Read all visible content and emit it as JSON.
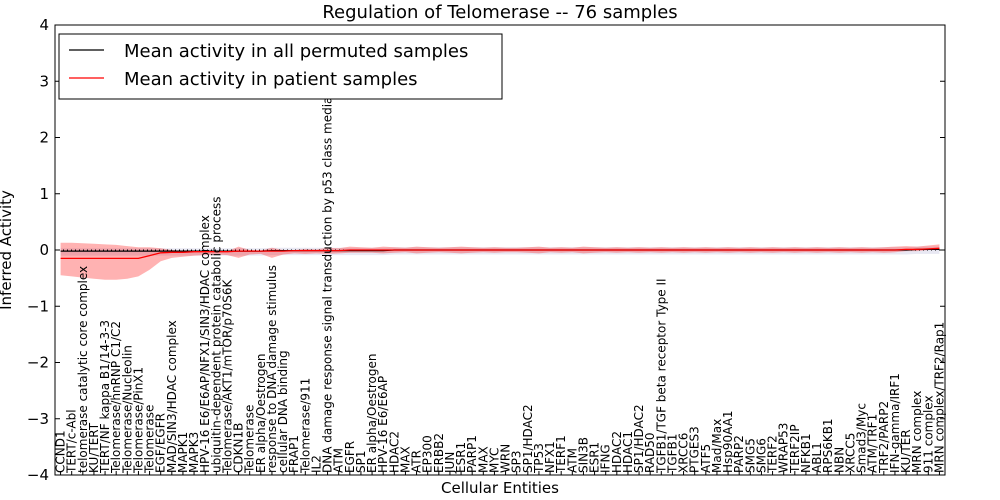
{
  "chart_data": {
    "type": "line",
    "title": "Regulation of Telomerase -- 76 samples",
    "xlabel": "Cellular Entities",
    "ylabel": "Inferred Activity",
    "ylim": [
      -4,
      4
    ],
    "yticks": [
      -4,
      -3,
      -2,
      -1,
      0,
      1,
      2,
      3,
      4
    ],
    "ytick_labels": [
      "−4",
      "−3",
      "−2",
      "−1",
      "0",
      "1",
      "2",
      "3",
      "4"
    ],
    "legend": {
      "location": "upper-left",
      "entries": [
        {
          "label": "Mean activity in all permuted samples",
          "color": "#000000"
        },
        {
          "label": "Mean activity in patient samples",
          "color": "#ff0000"
        }
      ]
    },
    "categories": [
      "CCND1",
      "TERT/c-Abl",
      "telomerase catalytic core complex",
      "KU/TERT",
      "TERT/NF kappa B1/14-3-3",
      "Telomerase/hnRNP C1/C2",
      "Telomerase/Nucleolin",
      "Telomerase/PinX1",
      "Telomerase",
      "EGF/EGFR",
      "MAD/SIN3/HDAC complex",
      "MAPK1",
      "MAPK3",
      "HPV-16 E6/E6AP/NFX1/SIN3/HDAC complex",
      "ubiquitin-dependent protein catabolic process",
      "Telomerase/AKT1/mTOR/p70S6K",
      "CDKN1B",
      "Telomerase",
      "ER alpha/Oestrogen",
      "response to DNA damage stimulus",
      "cellular DNA binding",
      "FRAP1",
      "Telomerase/911",
      "IL2",
      "DNA damage response signal transduction by p53 class mediator",
      "ATM",
      "EGFR",
      "SP1",
      "ER alpha/Oestrogen",
      "HPV-16 E6/E6AP",
      "HDAC2",
      "MAX",
      "ATR",
      "EP300",
      "ERBB2",
      "JUN",
      "ESR1",
      "PARP1",
      "MAX",
      "MYC",
      "WRN",
      "SP3",
      "SP1/HDAC2",
      "TP53",
      "NFX1",
      "TERF1",
      "ATM",
      "SIN3B",
      "ESR1",
      "IFNG",
      "HDAC2",
      "HDAC1",
      "SP1/HDAC2",
      "RAD50",
      "TGFB1/TGF beta receptor Type II",
      "TGFB1",
      "XRCC6",
      "PTGES3",
      "ATF5",
      "Mad/Max",
      "Hsp90AA1",
      "PARP2",
      "SMG5",
      "SMG6",
      "TERF2",
      "WRAP53",
      "TERF2IP",
      "NFKB1",
      "ABL1",
      "RPS6KB1",
      "NBN",
      "XRCC5",
      "Smad3/Myc",
      "ATM/TRF1",
      "TRF2/PARP2",
      "IFN-gamma/IRF1",
      "KU/TER",
      "MRN complex",
      "911 complex",
      "MRN complex/TRF2/Rap1"
    ],
    "series": [
      {
        "name": "Mean activity in patient samples",
        "color": "#ff0000",
        "values": [
          -0.15,
          -0.15,
          -0.15,
          -0.15,
          -0.15,
          -0.15,
          -0.15,
          -0.15,
          -0.1,
          -0.05,
          -0.04,
          -0.04,
          -0.03,
          -0.03,
          -0.03,
          -0.03,
          -0.02,
          -0.02,
          -0.02,
          -0.02,
          -0.02,
          -0.01,
          -0.01,
          -0.01,
          -0.01,
          -0.01,
          0.0,
          0.0,
          0.0,
          0.0,
          0.0,
          0.0,
          0.0,
          0.0,
          0.0,
          0.0,
          0.0,
          0.0,
          0.0,
          0.0,
          0.0,
          0.0,
          0.0,
          0.0,
          0.0,
          0.0,
          0.0,
          0.0,
          0.0,
          0.0,
          0.0,
          0.0,
          0.0,
          0.0,
          0.0,
          0.0,
          0.0,
          0.0,
          0.0,
          0.0,
          0.0,
          0.0,
          0.0,
          0.0,
          0.0,
          0.0,
          0.0,
          0.0,
          0.0,
          0.0,
          0.0,
          0.0,
          0.0,
          0.0,
          0.0,
          0.0,
          0.01,
          0.01,
          0.02,
          0.03
        ],
        "band_upper": [
          0.28,
          0.28,
          0.27,
          0.26,
          0.25,
          0.24,
          0.22,
          0.2,
          0.15,
          0.08,
          0.04,
          0.02,
          0.01,
          0.0,
          0.02,
          0.01,
          0.08,
          0.02,
          0.01,
          0.06,
          0.02,
          0.01,
          0.03,
          0.02,
          0.05,
          0.04,
          0.06,
          0.05,
          0.04,
          0.06,
          0.05,
          0.04,
          0.06,
          0.05,
          0.04,
          0.05,
          0.06,
          0.05,
          0.04,
          0.05,
          0.04,
          0.04,
          0.05,
          0.06,
          0.04,
          0.05,
          0.04,
          0.06,
          0.05,
          0.04,
          0.05,
          0.04,
          0.05,
          0.04,
          0.05,
          0.04,
          0.05,
          0.04,
          0.05,
          0.04,
          0.05,
          0.04,
          0.05,
          0.04,
          0.05,
          0.04,
          0.05,
          0.04,
          0.05,
          0.04,
          0.05,
          0.04,
          0.05,
          0.04,
          0.05,
          0.06,
          0.06,
          0.05,
          0.06,
          0.07
        ],
        "band_lower": [
          -0.3,
          -0.32,
          -0.34,
          -0.36,
          -0.38,
          -0.38,
          -0.36,
          -0.32,
          -0.25,
          -0.15,
          -0.1,
          -0.08,
          -0.07,
          -0.06,
          -0.05,
          -0.06,
          -0.12,
          -0.06,
          -0.05,
          -0.12,
          -0.06,
          -0.05,
          -0.06,
          -0.05,
          -0.06,
          -0.05,
          -0.05,
          -0.05,
          -0.05,
          -0.06,
          -0.05,
          -0.04,
          -0.06,
          -0.05,
          -0.04,
          -0.05,
          -0.06,
          -0.05,
          -0.04,
          -0.05,
          -0.04,
          -0.04,
          -0.05,
          -0.06,
          -0.04,
          -0.05,
          -0.04,
          -0.06,
          -0.05,
          -0.04,
          -0.05,
          -0.04,
          -0.05,
          -0.04,
          -0.05,
          -0.04,
          -0.05,
          -0.04,
          -0.05,
          -0.04,
          -0.05,
          -0.04,
          -0.05,
          -0.04,
          -0.05,
          -0.04,
          -0.05,
          -0.04,
          -0.05,
          -0.04,
          -0.05,
          -0.04,
          -0.05,
          -0.04,
          -0.05,
          -0.04,
          -0.03,
          -0.03,
          -0.02,
          -0.02
        ]
      },
      {
        "name": "Mean activity in all permuted samples",
        "color": "#000000",
        "values": [
          -0.02,
          -0.02,
          -0.02,
          -0.02,
          -0.02,
          -0.02,
          -0.02,
          -0.02,
          -0.02,
          -0.02,
          -0.02,
          -0.02,
          -0.02,
          -0.02,
          -0.02,
          -0.02,
          -0.02,
          -0.02,
          -0.02,
          -0.01,
          -0.01,
          -0.01,
          -0.01,
          -0.01,
          -0.01,
          -0.01,
          -0.01,
          -0.01,
          -0.01,
          -0.01,
          0.0,
          0.0,
          0.0,
          0.0,
          0.0,
          0.0,
          0.0,
          0.0,
          0.0,
          0.0,
          0.0,
          0.0,
          0.0,
          0.0,
          0.0,
          0.0,
          0.0,
          0.0,
          0.0,
          0.0,
          0.0,
          0.0,
          0.0,
          0.0,
          0.0,
          0.0,
          0.0,
          0.0,
          0.0,
          0.0,
          0.0,
          0.0,
          0.0,
          0.0,
          0.0,
          0.0,
          0.0,
          0.0,
          0.0,
          0.0,
          0.0,
          0.0,
          0.0,
          0.0,
          0.0,
          0.0,
          0.0,
          0.01,
          0.01,
          0.01
        ],
        "band_upper": [
          0.05,
          0.05,
          0.05,
          0.05,
          0.05,
          0.05,
          0.05,
          0.05,
          0.05,
          0.05,
          0.05,
          0.05,
          0.05,
          0.05,
          0.05,
          0.05,
          0.05,
          0.05,
          0.05,
          0.05,
          0.05,
          0.05,
          0.05,
          0.05,
          0.05,
          0.05,
          0.05,
          0.05,
          0.05,
          0.05,
          0.05,
          0.05,
          0.05,
          0.05,
          0.05,
          0.05,
          0.05,
          0.05,
          0.05,
          0.05,
          0.05,
          0.05,
          0.05,
          0.05,
          0.05,
          0.05,
          0.05,
          0.05,
          0.05,
          0.05,
          0.05,
          0.05,
          0.05,
          0.05,
          0.05,
          0.05,
          0.05,
          0.05,
          0.05,
          0.05,
          0.05,
          0.05,
          0.05,
          0.05,
          0.05,
          0.05,
          0.05,
          0.05,
          0.05,
          0.05,
          0.05,
          0.05,
          0.05,
          0.05,
          0.05,
          0.05,
          0.05,
          0.05,
          0.05,
          0.05
        ],
        "band_lower": [
          -0.08,
          -0.08,
          -0.08,
          -0.08,
          -0.08,
          -0.08,
          -0.08,
          -0.08,
          -0.08,
          -0.08,
          -0.08,
          -0.08,
          -0.08,
          -0.08,
          -0.08,
          -0.08,
          -0.08,
          -0.08,
          -0.08,
          -0.08,
          -0.08,
          -0.08,
          -0.08,
          -0.08,
          -0.08,
          -0.08,
          -0.08,
          -0.08,
          -0.08,
          -0.08,
          -0.08,
          -0.08,
          -0.08,
          -0.08,
          -0.08,
          -0.08,
          -0.08,
          -0.08,
          -0.08,
          -0.08,
          -0.08,
          -0.08,
          -0.08,
          -0.08,
          -0.08,
          -0.08,
          -0.08,
          -0.08,
          -0.08,
          -0.08,
          -0.08,
          -0.08,
          -0.08,
          -0.08,
          -0.08,
          -0.08,
          -0.08,
          -0.08,
          -0.08,
          -0.08,
          -0.08,
          -0.08,
          -0.08,
          -0.08,
          -0.08,
          -0.08,
          -0.08,
          -0.08,
          -0.08,
          -0.08,
          -0.08,
          -0.08,
          -0.08,
          -0.08,
          -0.08,
          -0.08,
          -0.08,
          -0.08,
          -0.08,
          -0.08
        ]
      }
    ],
    "zero_line": {
      "value": 0,
      "style": "dotted",
      "color": "#000000"
    }
  }
}
